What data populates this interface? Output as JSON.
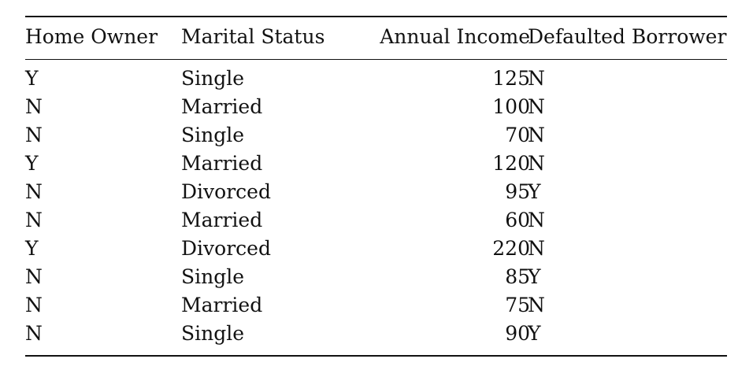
{
  "table": {
    "headers": [
      "Home Owner",
      "Marital Status",
      "Annual Income",
      "Defaulted Borrower"
    ],
    "rows": [
      [
        "Y",
        "Single",
        "125",
        "N"
      ],
      [
        "N",
        "Married",
        "100",
        "N"
      ],
      [
        "N",
        "Single",
        "70",
        "N"
      ],
      [
        "Y",
        "Married",
        "120",
        "N"
      ],
      [
        "N",
        "Divorced",
        "95",
        "Y"
      ],
      [
        "N",
        "Married",
        "60",
        "N"
      ],
      [
        "Y",
        "Divorced",
        "220",
        "N"
      ],
      [
        "N",
        "Single",
        "85",
        "Y"
      ],
      [
        "N",
        "Married",
        "75",
        "N"
      ],
      [
        "N",
        "Single",
        "90",
        "Y"
      ]
    ]
  }
}
